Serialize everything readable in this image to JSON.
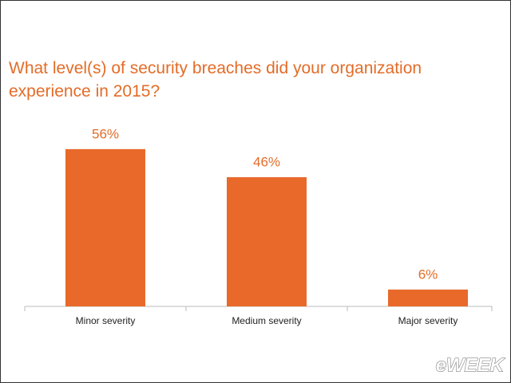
{
  "chart_data": {
    "type": "bar",
    "title": "What level(s) of security breaches did your organization experience in 2015?",
    "categories": [
      "Minor severity",
      "Medium severity",
      "Major severity"
    ],
    "values": [
      56,
      46,
      6
    ],
    "value_labels": [
      "56%",
      "46%",
      "6%"
    ],
    "color": "#e8692a"
  },
  "watermark": "eWEEK"
}
